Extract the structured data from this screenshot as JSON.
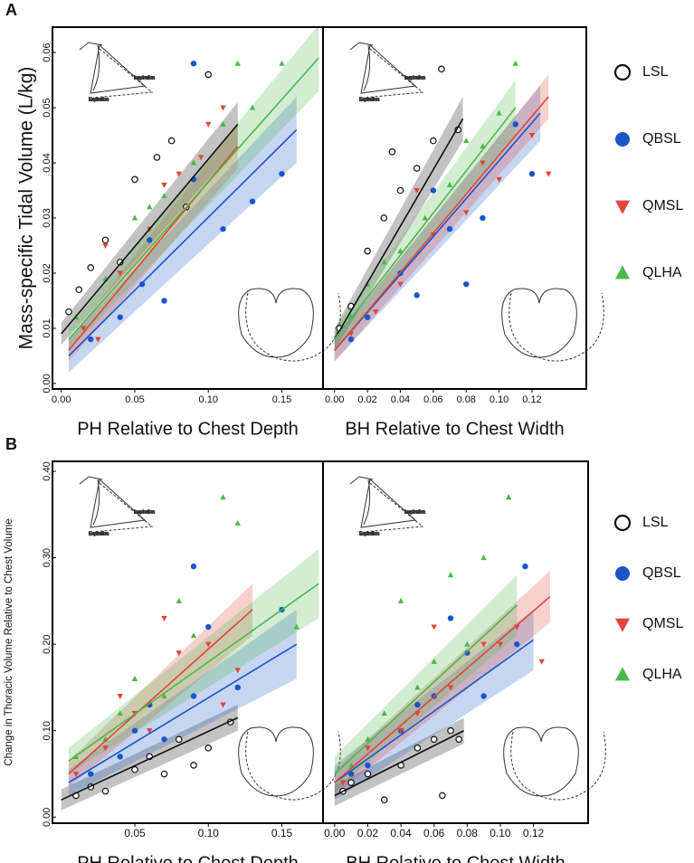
{
  "chart_data": [
    {
      "type": "scatter",
      "panel_label": "A",
      "ylabel": "Mass-specific Tidal Volume (L/kg)",
      "xlabel": "PH Relative to Chest Depth",
      "annotations": [
        "Inspiration",
        "Expiration"
      ],
      "xlim": [
        -0.006,
        0.178
      ],
      "ylim": [
        -0.001,
        0.0646
      ],
      "xticks": [
        {
          "value": 0,
          "label": "0.00"
        },
        {
          "value": 0.05,
          "label": "0.05"
        },
        {
          "value": 0.1,
          "label": "0.10"
        },
        {
          "value": 0.15,
          "label": "0.15"
        }
      ],
      "yticks": [
        {
          "value": 0,
          "label": "0.00"
        },
        {
          "value": 0.01,
          "label": "0.01"
        },
        {
          "value": 0.02,
          "label": "0.02"
        },
        {
          "value": 0.03,
          "label": "0.03"
        },
        {
          "value": 0.04,
          "label": "0.04"
        },
        {
          "value": 0.05,
          "label": "0.05"
        },
        {
          "value": 0.06,
          "label": "0.06"
        }
      ],
      "series": [
        {
          "name": "LSL",
          "color": "#111111",
          "marker": "open-circle",
          "x": [
            0.005,
            0.012,
            0.02,
            0.03,
            0.04,
            0.05,
            0.065,
            0.075,
            0.085,
            0.1
          ],
          "values": [
            0.013,
            0.017,
            0.021,
            0.026,
            0.022,
            0.037,
            0.041,
            0.044,
            0.032,
            0.056
          ],
          "fit": {
            "x": [
              0,
              0.12
            ],
            "y": [
              0.009,
              0.047
            ],
            "ci": [
              0.002,
              0.004
            ]
          }
        },
        {
          "name": "QBSL",
          "color": "#1a56c8",
          "marker": "circle",
          "x": [
            0.02,
            0.04,
            0.055,
            0.07,
            0.09,
            0.11,
            0.13,
            0.15,
            0.09,
            0.06
          ],
          "values": [
            0.008,
            0.012,
            0.018,
            0.015,
            0.037,
            0.028,
            0.033,
            0.038,
            0.058,
            0.026
          ],
          "fit": {
            "x": [
              0.005,
              0.16
            ],
            "y": [
              0.005,
              0.046
            ],
            "ci": [
              0.003,
              0.006
            ]
          }
        },
        {
          "name": "QMSL",
          "color": "#e0463a",
          "marker": "triangle-down",
          "x": [
            0.015,
            0.025,
            0.04,
            0.06,
            0.08,
            0.095,
            0.11,
            0.03,
            0.07,
            0.1
          ],
          "values": [
            0.01,
            0.008,
            0.02,
            0.028,
            0.038,
            0.041,
            0.05,
            0.025,
            0.036,
            0.047
          ],
          "fit": {
            "x": [
              0.005,
              0.12
            ],
            "y": [
              0.006,
              0.043
            ],
            "ci": [
              0.002,
              0.004
            ]
          }
        },
        {
          "name": "QLHA",
          "color": "#4cb84a",
          "marker": "triangle-up",
          "x": [
            0.01,
            0.03,
            0.05,
            0.07,
            0.09,
            0.11,
            0.13,
            0.15,
            0.06,
            0.12
          ],
          "values": [
            0.012,
            0.019,
            0.03,
            0.034,
            0.04,
            0.047,
            0.05,
            0.058,
            0.032,
            0.058
          ],
          "fit": {
            "x": [
              0.005,
              0.175
            ],
            "y": [
              0.008,
              0.059
            ],
            "ci": [
              0.002,
              0.006
            ]
          }
        }
      ]
    },
    {
      "type": "scatter",
      "xlabel": "BH Relative to Chest Width",
      "legend": "right",
      "annotations": [
        "Inspiration",
        "Expiration"
      ],
      "xlim": [
        -0.007,
        0.153
      ],
      "ylim": [
        -0.001,
        0.0646
      ],
      "xticks": [
        {
          "value": 0,
          "label": "0.00"
        },
        {
          "value": 0.02,
          "label": "0.02"
        },
        {
          "value": 0.04,
          "label": "0.04"
        },
        {
          "value": 0.06,
          "label": "0.06"
        },
        {
          "value": 0.08,
          "label": "0.08"
        },
        {
          "value": 0.1,
          "label": "0.10"
        },
        {
          "value": 0.12,
          "label": "0.12"
        }
      ],
      "series": [
        {
          "name": "LSL",
          "color": "#111111",
          "marker": "open-circle",
          "x": [
            0.003,
            0.01,
            0.02,
            0.03,
            0.04,
            0.05,
            0.06,
            0.075,
            0.035,
            0.065
          ],
          "values": [
            0.01,
            0.014,
            0.024,
            0.03,
            0.035,
            0.039,
            0.044,
            0.046,
            0.042,
            0.057
          ],
          "fit": {
            "x": [
              0,
              0.078
            ],
            "y": [
              0.008,
              0.048
            ],
            "ci": [
              0.002,
              0.004
            ]
          }
        },
        {
          "name": "QBSL",
          "color": "#1a56c8",
          "marker": "circle",
          "x": [
            0.01,
            0.02,
            0.04,
            0.05,
            0.07,
            0.09,
            0.11,
            0.12,
            0.06,
            0.08
          ],
          "values": [
            0.008,
            0.012,
            0.02,
            0.016,
            0.028,
            0.03,
            0.047,
            0.038,
            0.035,
            0.018
          ],
          "fit": {
            "x": [
              0,
              0.125
            ],
            "y": [
              0.006,
              0.049
            ],
            "ci": [
              0.002,
              0.005
            ]
          }
        },
        {
          "name": "QMSL",
          "color": "#e0463a",
          "marker": "triangle-down",
          "x": [
            0.01,
            0.025,
            0.04,
            0.06,
            0.08,
            0.1,
            0.12,
            0.13,
            0.05,
            0.09
          ],
          "values": [
            0.009,
            0.013,
            0.018,
            0.027,
            0.031,
            0.037,
            0.045,
            0.038,
            0.035,
            0.04
          ],
          "fit": {
            "x": [
              0,
              0.13
            ],
            "y": [
              0.006,
              0.052
            ],
            "ci": [
              0.002,
              0.004
            ]
          }
        },
        {
          "name": "QLHA",
          "color": "#4cb84a",
          "marker": "triangle-up",
          "x": [
            0.01,
            0.02,
            0.04,
            0.055,
            0.07,
            0.09,
            0.1,
            0.11,
            0.08,
            0.03
          ],
          "values": [
            0.012,
            0.018,
            0.024,
            0.03,
            0.036,
            0.043,
            0.049,
            0.058,
            0.044,
            0.022
          ],
          "fit": {
            "x": [
              0,
              0.11
            ],
            "y": [
              0.008,
              0.05
            ],
            "ci": [
              0.002,
              0.005
            ]
          }
        }
      ]
    },
    {
      "type": "scatter",
      "panel_label": "B",
      "ylabel": "Change in Thoracic Volume Relative to Chest Volume",
      "xlabel": "PH Relative to Chest Depth",
      "annotations": [
        "Inspiration",
        "Expiration"
      ],
      "xlim": [
        -0.006,
        0.178
      ],
      "ylim": [
        -0.007,
        0.4115
      ],
      "xticks": [
        {
          "value": 0.05,
          "label": "0.05"
        },
        {
          "value": 0.1,
          "label": "0.10"
        },
        {
          "value": 0.15,
          "label": "0.15"
        }
      ],
      "yticks": [
        {
          "value": 0,
          "label": "0.00"
        },
        {
          "value": 0.1,
          "label": "0.10"
        },
        {
          "value": 0.2,
          "label": "0.20"
        },
        {
          "value": 0.3,
          "label": "0.30"
        },
        {
          "value": 0.4,
          "label": "0.40"
        }
      ],
      "series": [
        {
          "name": "LSL",
          "color": "#111111",
          "marker": "open-circle",
          "x": [
            0.01,
            0.02,
            0.03,
            0.05,
            0.06,
            0.07,
            0.08,
            0.09,
            0.1,
            0.115
          ],
          "values": [
            0.025,
            0.035,
            0.03,
            0.055,
            0.07,
            0.05,
            0.09,
            0.06,
            0.08,
            0.11
          ],
          "fit": {
            "x": [
              0,
              0.12
            ],
            "y": [
              0.02,
              0.115
            ],
            "ci": [
              0.012,
              0.015
            ]
          }
        },
        {
          "name": "QBSL",
          "color": "#1a56c8",
          "marker": "circle",
          "x": [
            0.02,
            0.04,
            0.05,
            0.07,
            0.09,
            0.1,
            0.12,
            0.15,
            0.06,
            0.09
          ],
          "values": [
            0.05,
            0.07,
            0.1,
            0.09,
            0.14,
            0.22,
            0.15,
            0.24,
            0.13,
            0.29
          ],
          "fit": {
            "x": [
              0.005,
              0.16
            ],
            "y": [
              0.04,
              0.2
            ],
            "ci": [
              0.015,
              0.04
            ]
          }
        },
        {
          "name": "QMSL",
          "color": "#e0463a",
          "marker": "triangle-down",
          "x": [
            0.01,
            0.03,
            0.05,
            0.06,
            0.08,
            0.1,
            0.12,
            0.07,
            0.04,
            0.11
          ],
          "values": [
            0.05,
            0.08,
            0.12,
            0.1,
            0.19,
            0.2,
            0.17,
            0.23,
            0.14,
            0.13
          ],
          "fit": {
            "x": [
              0.005,
              0.13
            ],
            "y": [
              0.05,
              0.24
            ],
            "ci": [
              0.015,
              0.03
            ]
          }
        },
        {
          "name": "QLHA",
          "color": "#4cb84a",
          "marker": "triangle-up",
          "x": [
            0.01,
            0.03,
            0.05,
            0.07,
            0.09,
            0.11,
            0.12,
            0.04,
            0.08,
            0.16
          ],
          "values": [
            0.07,
            0.09,
            0.16,
            0.14,
            0.21,
            0.37,
            0.34,
            0.12,
            0.25,
            0.22
          ],
          "fit": {
            "x": [
              0.005,
              0.175
            ],
            "y": [
              0.065,
              0.27
            ],
            "ci": [
              0.015,
              0.04
            ]
          }
        }
      ]
    },
    {
      "type": "scatter",
      "xlabel": "BH Relative to Chest Width",
      "legend": "right",
      "annotations": [
        "Inspiration",
        "Expiration"
      ],
      "xlim": [
        -0.007,
        0.153
      ],
      "ylim": [
        -0.007,
        0.4115
      ],
      "xticks": [
        {
          "value": 0,
          "label": "0.00"
        },
        {
          "value": 0.02,
          "label": "0.02"
        },
        {
          "value": 0.04,
          "label": "0.04"
        },
        {
          "value": 0.06,
          "label": "0.06"
        },
        {
          "value": 0.08,
          "label": "0.08"
        },
        {
          "value": 0.1,
          "label": "0.10"
        },
        {
          "value": 0.12,
          "label": "0.12"
        }
      ],
      "series": [
        {
          "name": "LSL",
          "color": "#111111",
          "marker": "open-circle",
          "x": [
            0.005,
            0.01,
            0.02,
            0.03,
            0.04,
            0.05,
            0.06,
            0.065,
            0.07,
            0.075
          ],
          "values": [
            0.03,
            0.04,
            0.05,
            0.02,
            0.06,
            0.08,
            0.09,
            0.025,
            0.1,
            0.09
          ],
          "fit": {
            "x": [
              0,
              0.078
            ],
            "y": [
              0.025,
              0.1
            ],
            "ci": [
              0.012,
              0.015
            ]
          }
        },
        {
          "name": "QBSL",
          "color": "#1a56c8",
          "marker": "circle",
          "x": [
            0.01,
            0.02,
            0.04,
            0.05,
            0.06,
            0.08,
            0.09,
            0.11,
            0.115,
            0.07
          ],
          "values": [
            0.05,
            0.06,
            0.1,
            0.13,
            0.14,
            0.19,
            0.14,
            0.2,
            0.29,
            0.23
          ],
          "fit": {
            "x": [
              0,
              0.12
            ],
            "y": [
              0.04,
              0.205
            ],
            "ci": [
              0.02,
              0.035
            ]
          }
        },
        {
          "name": "QMSL",
          "color": "#e0463a",
          "marker": "triangle-down",
          "x": [
            0.005,
            0.02,
            0.04,
            0.05,
            0.07,
            0.09,
            0.11,
            0.125,
            0.06,
            0.1
          ],
          "values": [
            0.04,
            0.08,
            0.1,
            0.12,
            0.15,
            0.2,
            0.22,
            0.18,
            0.22,
            0.2
          ],
          "fit": {
            "x": [
              0,
              0.13
            ],
            "y": [
              0.04,
              0.255
            ],
            "ci": [
              0.015,
              0.03
            ]
          }
        },
        {
          "name": "QLHA",
          "color": "#4cb84a",
          "marker": "triangle-up",
          "x": [
            0.01,
            0.03,
            0.04,
            0.05,
            0.06,
            0.08,
            0.09,
            0.105,
            0.07,
            0.02
          ],
          "values": [
            0.06,
            0.12,
            0.25,
            0.15,
            0.18,
            0.2,
            0.3,
            0.37,
            0.28,
            0.09
          ],
          "fit": {
            "x": [
              0,
              0.11
            ],
            "y": [
              0.05,
              0.245
            ],
            "ci": [
              0.02,
              0.035
            ]
          }
        }
      ]
    }
  ]
}
